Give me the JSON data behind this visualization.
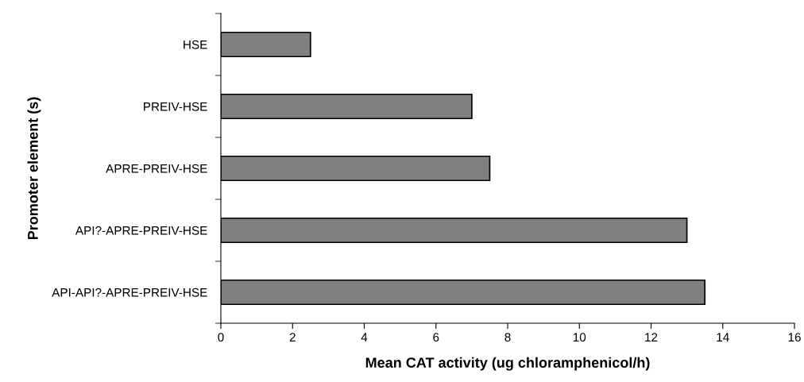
{
  "chart_data": {
    "type": "bar",
    "orientation": "horizontal",
    "categories": [
      "HSE",
      "PREIV-HSE",
      "APRE-PREIV-HSE",
      "API?-APRE-PREIV-HSE",
      "API-API?-APRE-PREIV-HSE"
    ],
    "values": [
      2.5,
      7.0,
      7.5,
      13.0,
      13.5
    ],
    "color": "#808080",
    "xlabel": "Mean CAT activity (ug chloramphenicol/h)",
    "ylabel": "Promoter element (s)",
    "xlim": [
      0,
      16
    ],
    "xticks": [
      0,
      2,
      4,
      6,
      8,
      10,
      12,
      14,
      16
    ],
    "grid": false,
    "legend": false
  }
}
